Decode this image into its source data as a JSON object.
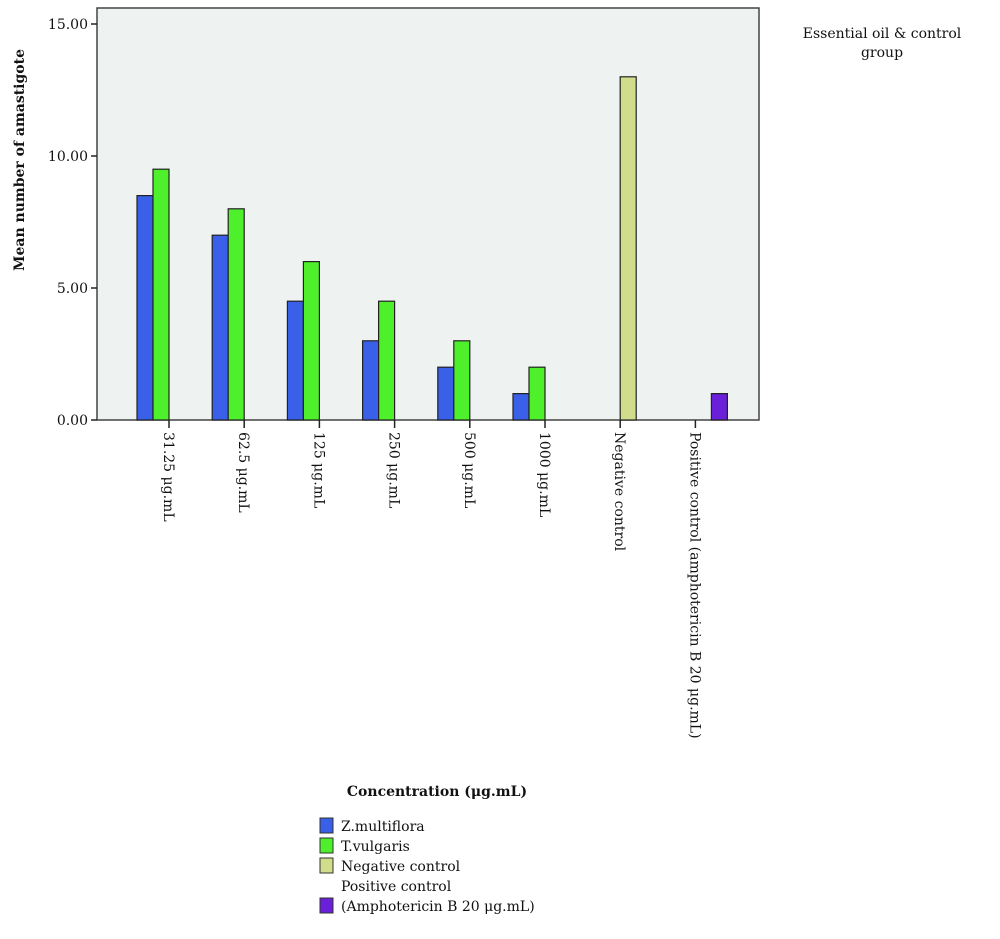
{
  "chart_data": {
    "type": "bar",
    "title": "",
    "xlabel": "Concentration (μg.mL)",
    "ylabel": "Mean number of amastigote",
    "ylim": [
      0,
      15.5
    ],
    "yticks": [
      "0.00",
      "5.00",
      "10.00",
      "15.00"
    ],
    "ytick_values": [
      0,
      5,
      10,
      15
    ],
    "grid": false,
    "legend_title": "Essential oil & control group",
    "legend_placement": "bottom",
    "categories": [
      "31.25 μg.mL",
      "62.5 μg.mL",
      "125 μg.mL",
      "250 μg.mL",
      "500 μg.mL",
      "1000 μg.mL",
      "Negative control",
      "Positive control (amphotericin B 20 μg.mL)"
    ],
    "series": [
      {
        "name": "Z.multiflora",
        "color": "#3a5fe8",
        "values": [
          8.5,
          7.0,
          4.5,
          3.0,
          2.0,
          1.0,
          null,
          null
        ]
      },
      {
        "name": "T.vulgaris",
        "color": "#4ef02c",
        "values": [
          9.5,
          8.0,
          6.0,
          4.5,
          3.0,
          2.0,
          null,
          null
        ]
      },
      {
        "name": "Negative control",
        "color": "#d2dd8c",
        "values": [
          null,
          null,
          null,
          null,
          null,
          null,
          13.0,
          null
        ]
      },
      {
        "name": "Positive control\n(Amphotericin B 20 μg.mL)",
        "name_lines": [
          "Positive control",
          "(Amphotericin B 20 μg.mL)"
        ],
        "color": "#6a20d8",
        "values": [
          null,
          null,
          null,
          null,
          null,
          null,
          null,
          1.0
        ]
      }
    ],
    "plot_background": "#eef2f0"
  }
}
